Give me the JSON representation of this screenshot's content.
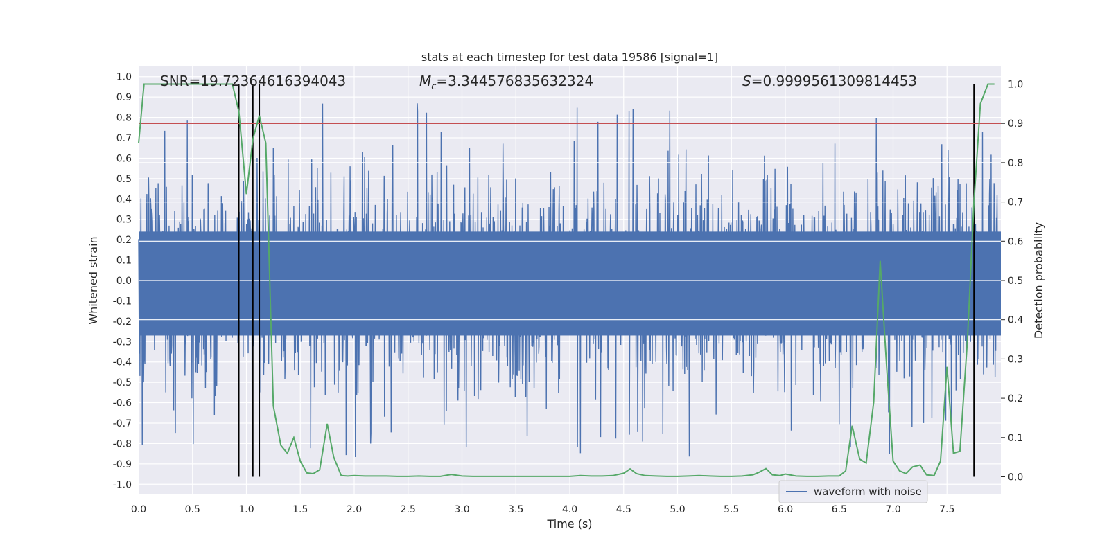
{
  "chart_data": {
    "type": "line",
    "title": "stats at each timestep for test data 19586 [signal=1]",
    "xlabel": "Time (s)",
    "ylabel_left": "Whitened strain",
    "ylabel_right": "Detection probability",
    "xlim": [
      0.0,
      8.0
    ],
    "ylim_left": [
      -1.05,
      1.05
    ],
    "ylim_right": [
      -0.045,
      1.045
    ],
    "x_ticks": [
      "0.0",
      "0.5",
      "1.0",
      "1.5",
      "2.0",
      "2.5",
      "3.0",
      "3.5",
      "4.0",
      "4.5",
      "5.0",
      "5.5",
      "6.0",
      "6.5",
      "7.0",
      "7.5"
    ],
    "y_ticks_left": [
      "1.0",
      "0.9",
      "0.8",
      "0.7",
      "0.6",
      "0.5",
      "0.4",
      "0.3",
      "0.2",
      "0.1",
      "0.0",
      "-0.1",
      "-0.2",
      "-0.3",
      "-0.4",
      "-0.5",
      "-0.6",
      "-0.7",
      "-0.8",
      "-0.9",
      "-1.0"
    ],
    "y_ticks_right": [
      "1.0",
      "0.9",
      "0.8",
      "0.7",
      "0.6",
      "0.5",
      "0.4",
      "0.3",
      "0.2",
      "0.1",
      "0.0"
    ],
    "grid": true,
    "legend_position": "lower-right",
    "annotations": {
      "snr": "SNR=19.72364616394043",
      "mc_symbol": "M",
      "mc_sub": "c",
      "mc_value": "=3.344576835632324",
      "s_symbol": "S",
      "s_value": "=0.9999561309814453"
    },
    "threshold": {
      "axis": "right",
      "y": 0.9
    },
    "vertical_markers": [
      0.93,
      1.06,
      1.12,
      7.75
    ],
    "series": [
      {
        "name": "waveform with noise",
        "axis": "left",
        "kind": "noise",
        "typical_amplitude": 0.36,
        "max_abs": 1.0
      },
      {
        "axis": "right",
        "kind": "line",
        "x": [
          0.0,
          0.05,
          0.1,
          0.2,
          0.3,
          0.4,
          0.5,
          0.6,
          0.7,
          0.8,
          0.87,
          0.93,
          1.0,
          1.06,
          1.12,
          1.18,
          1.25,
          1.32,
          1.38,
          1.44,
          1.5,
          1.56,
          1.62,
          1.68,
          1.75,
          1.81,
          1.88,
          1.94,
          2.0,
          2.1,
          2.2,
          2.3,
          2.4,
          2.5,
          2.6,
          2.7,
          2.8,
          2.9,
          3.0,
          3.1,
          3.2,
          3.3,
          3.4,
          3.5,
          3.6,
          3.7,
          3.8,
          3.9,
          4.0,
          4.1,
          4.2,
          4.3,
          4.4,
          4.5,
          4.56,
          4.62,
          4.7,
          4.8,
          4.9,
          5.0,
          5.1,
          5.2,
          5.3,
          5.4,
          5.5,
          5.6,
          5.7,
          5.76,
          5.82,
          5.88,
          5.95,
          6.0,
          6.1,
          6.2,
          6.3,
          6.4,
          6.5,
          6.56,
          6.62,
          6.69,
          6.75,
          6.82,
          6.88,
          6.94,
          7.0,
          7.06,
          7.12,
          7.18,
          7.25,
          7.31,
          7.38,
          7.44,
          7.5,
          7.56,
          7.62,
          7.69,
          7.75,
          7.81,
          7.88,
          7.94
        ],
        "values": [
          0.85,
          1.0,
          1.0,
          1.0,
          1.0,
          1.0,
          1.0,
          1.0,
          1.0,
          1.0,
          1.0,
          0.93,
          0.72,
          0.86,
          0.92,
          0.85,
          0.18,
          0.08,
          0.06,
          0.1,
          0.04,
          0.01,
          0.008,
          0.018,
          0.135,
          0.05,
          0.003,
          0.002,
          0.003,
          0.002,
          0.002,
          0.002,
          0.001,
          0.001,
          0.002,
          0.001,
          0.001,
          0.006,
          0.002,
          0.001,
          0.001,
          0.001,
          0.001,
          0.001,
          0.001,
          0.001,
          0.001,
          0.001,
          0.001,
          0.003,
          0.002,
          0.002,
          0.003,
          0.009,
          0.02,
          0.008,
          0.003,
          0.002,
          0.001,
          0.001,
          0.002,
          0.003,
          0.002,
          0.001,
          0.001,
          0.002,
          0.005,
          0.012,
          0.021,
          0.005,
          0.003,
          0.007,
          0.002,
          0.001,
          0.001,
          0.002,
          0.002,
          0.015,
          0.13,
          0.045,
          0.035,
          0.19,
          0.55,
          0.28,
          0.04,
          0.015,
          0.008,
          0.025,
          0.03,
          0.005,
          0.003,
          0.04,
          0.28,
          0.06,
          0.065,
          0.35,
          0.7,
          0.95,
          1.0,
          1.0
        ]
      }
    ]
  }
}
